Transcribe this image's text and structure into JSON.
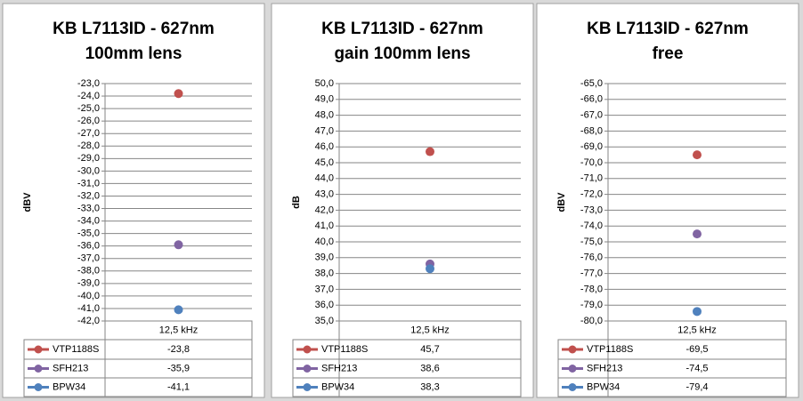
{
  "chart_data": [
    {
      "type": "scatter",
      "title": [
        "KB L7113ID - 627nm",
        "100mm lens"
      ],
      "y_label": "dBV",
      "categories": [
        "12,5 kHz"
      ],
      "ylim": [
        -42,
        -23
      ],
      "yticks": [
        {
          "value": -23,
          "label": "-23,0"
        },
        {
          "value": -24,
          "label": "-24,0"
        },
        {
          "value": -25,
          "label": "-25,0"
        },
        {
          "value": -26,
          "label": "-26,0"
        },
        {
          "value": -27,
          "label": "-27,0"
        },
        {
          "value": -28,
          "label": "-28,0"
        },
        {
          "value": -29,
          "label": "-29,0"
        },
        {
          "value": -30,
          "label": "-30,0"
        },
        {
          "value": -31,
          "label": "-31,0"
        },
        {
          "value": -32,
          "label": "-32,0"
        },
        {
          "value": -33,
          "label": "-33,0"
        },
        {
          "value": -34,
          "label": "-34,0"
        },
        {
          "value": -35,
          "label": "-35,0"
        },
        {
          "value": -36,
          "label": "-36,0"
        },
        {
          "value": -37,
          "label": "-37,0"
        },
        {
          "value": -38,
          "label": "-38,0"
        },
        {
          "value": -39,
          "label": "-39,0"
        },
        {
          "value": -40,
          "label": "-40,0"
        },
        {
          "value": -41,
          "label": "-41,0"
        },
        {
          "value": -42,
          "label": "-42,0"
        }
      ],
      "grid": true,
      "series": [
        {
          "name": "VTP1188S",
          "color": "#c0504d",
          "values": [
            -23.8
          ],
          "value_labels": [
            "-23,8"
          ]
        },
        {
          "name": "SFH213",
          "color": "#8064a2",
          "values": [
            -35.9
          ],
          "value_labels": [
            "-35,9"
          ]
        },
        {
          "name": "BPW34",
          "color": "#4f81bd",
          "values": [
            -41.1
          ],
          "value_labels": [
            "-41,1"
          ]
        }
      ]
    },
    {
      "type": "scatter",
      "title": [
        "KB L7113ID - 627nm",
        "gain 100mm lens"
      ],
      "y_label": "dB",
      "categories": [
        "12,5 kHz"
      ],
      "ylim": [
        35,
        50
      ],
      "yticks": [
        {
          "value": 35,
          "label": "35,0"
        },
        {
          "value": 36,
          "label": "36,0"
        },
        {
          "value": 37,
          "label": "37,0"
        },
        {
          "value": 38,
          "label": "38,0"
        },
        {
          "value": 39,
          "label": "39,0"
        },
        {
          "value": 40,
          "label": "40,0"
        },
        {
          "value": 41,
          "label": "41,0"
        },
        {
          "value": 42,
          "label": "42,0"
        },
        {
          "value": 43,
          "label": "43,0"
        },
        {
          "value": 44,
          "label": "44,0"
        },
        {
          "value": 45,
          "label": "45,0"
        },
        {
          "value": 46,
          "label": "46,0"
        },
        {
          "value": 47,
          "label": "47,0"
        },
        {
          "value": 48,
          "label": "48,0"
        },
        {
          "value": 49,
          "label": "49,0"
        },
        {
          "value": 50,
          "label": "50,0"
        }
      ],
      "grid": true,
      "series": [
        {
          "name": "VTP1188S",
          "color": "#c0504d",
          "values": [
            45.7
          ],
          "value_labels": [
            "45,7"
          ]
        },
        {
          "name": "SFH213",
          "color": "#8064a2",
          "values": [
            38.6
          ],
          "value_labels": [
            "38,6"
          ]
        },
        {
          "name": "BPW34",
          "color": "#4f81bd",
          "values": [
            38.3
          ],
          "value_labels": [
            "38,3"
          ]
        }
      ]
    },
    {
      "type": "scatter",
      "title": [
        "KB L7113ID - 627nm",
        "free"
      ],
      "y_label": "dBV",
      "categories": [
        "12,5 kHz"
      ],
      "ylim": [
        -80,
        -65
      ],
      "yticks": [
        {
          "value": -65,
          "label": "-65,0"
        },
        {
          "value": -66,
          "label": "-66,0"
        },
        {
          "value": -67,
          "label": "-67,0"
        },
        {
          "value": -68,
          "label": "-68,0"
        },
        {
          "value": -69,
          "label": "-69,0"
        },
        {
          "value": -70,
          "label": "-70,0"
        },
        {
          "value": -71,
          "label": "-71,0"
        },
        {
          "value": -72,
          "label": "-72,0"
        },
        {
          "value": -73,
          "label": "-73,0"
        },
        {
          "value": -74,
          "label": "-74,0"
        },
        {
          "value": -75,
          "label": "-75,0"
        },
        {
          "value": -76,
          "label": "-76,0"
        },
        {
          "value": -77,
          "label": "-77,0"
        },
        {
          "value": -78,
          "label": "-78,0"
        },
        {
          "value": -79,
          "label": "-79,0"
        },
        {
          "value": -80,
          "label": "-80,0"
        }
      ],
      "grid": true,
      "series": [
        {
          "name": "VTP1188S",
          "color": "#c0504d",
          "values": [
            -69.5
          ],
          "value_labels": [
            "-69,5"
          ]
        },
        {
          "name": "SFH213",
          "color": "#8064a2",
          "values": [
            -74.5
          ],
          "value_labels": [
            "-74,5"
          ]
        },
        {
          "name": "BPW34",
          "color": "#4f81bd",
          "values": [
            -79.4
          ],
          "value_labels": [
            "-79,4"
          ]
        }
      ]
    }
  ]
}
